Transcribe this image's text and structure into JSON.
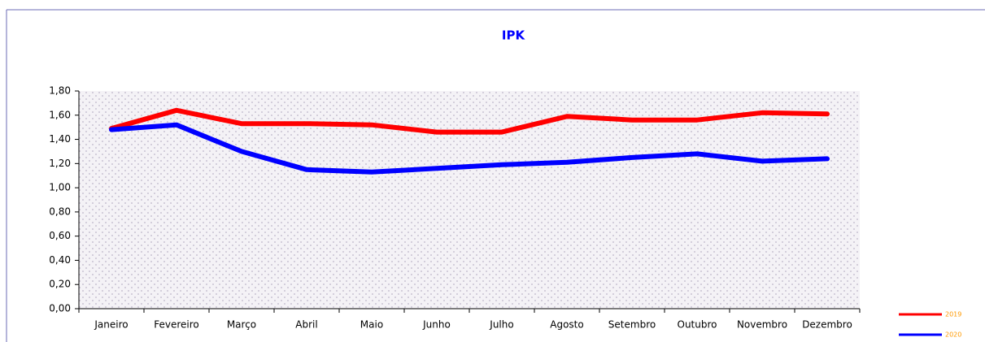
{
  "chart_data": {
    "type": "line",
    "title": "IPK",
    "categories": [
      "Janeiro",
      "Fevereiro",
      "Março",
      "Abril",
      "Maio",
      "Junho",
      "Julho",
      "Agosto",
      "Setembro",
      "Outubro",
      "Novembro",
      "Dezembro"
    ],
    "series": [
      {
        "name": "2019",
        "color": "#ff0000",
        "values": [
          1.49,
          1.64,
          1.53,
          1.53,
          1.52,
          1.46,
          1.46,
          1.59,
          1.56,
          1.56,
          1.62,
          1.61
        ]
      },
      {
        "name": "2020",
        "color": "#0000ff",
        "values": [
          1.48,
          1.52,
          1.3,
          1.15,
          1.13,
          1.16,
          1.19,
          1.21,
          1.25,
          1.28,
          1.22,
          1.24
        ]
      }
    ],
    "ylim": [
      0,
      1.8
    ],
    "yticks": [
      {
        "value": 0,
        "label": "0,00"
      },
      {
        "value": 0.2,
        "label": "0,20"
      },
      {
        "value": 0.4,
        "label": "0,40"
      },
      {
        "value": 0.6,
        "label": "0,60"
      },
      {
        "value": 0.8,
        "label": "0,80"
      },
      {
        "value": 1.0,
        "label": "1,00"
      },
      {
        "value": 1.2,
        "label": "1,20"
      },
      {
        "value": 1.4,
        "label": "1,40"
      },
      {
        "value": 1.6,
        "label": "1,60"
      },
      {
        "value": 1.8,
        "label": "1,80"
      }
    ],
    "legend": "bottom-right"
  }
}
